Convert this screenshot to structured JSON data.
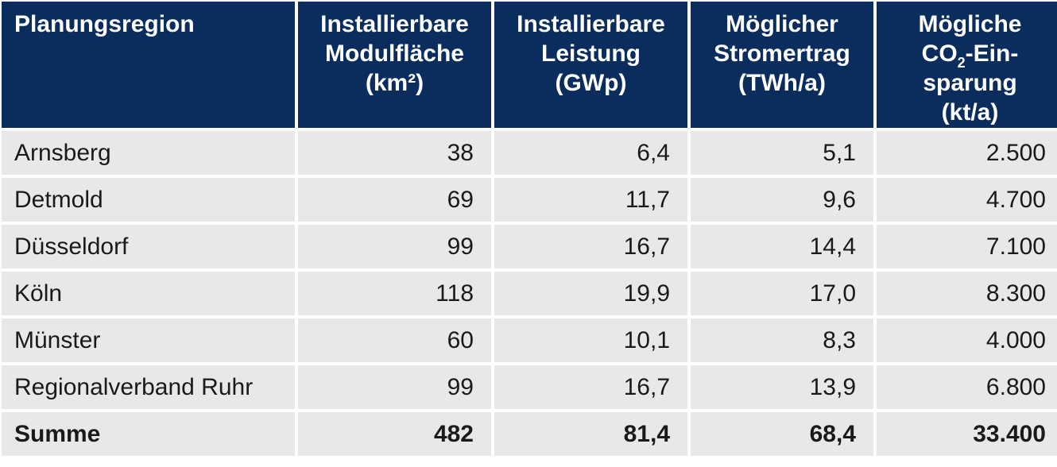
{
  "table": {
    "headers": {
      "region": "Planungsregion",
      "area": [
        "Installierbare",
        "Modulfläche",
        "(km²)"
      ],
      "power": [
        "Installierbare",
        "Leistung",
        "(GWp)"
      ],
      "yield": [
        "Möglicher",
        "Stromertrag",
        "(TWh/a)"
      ],
      "co2": {
        "line1": "Mögliche",
        "co": "CO",
        "sub": "2",
        "rest": "-Ein-",
        "line3": "sparung",
        "line4": "(kt/a)"
      }
    },
    "rows": [
      {
        "region": "Arnsberg",
        "area": "38",
        "power": "6,4",
        "yield": "5,1",
        "co2": "2.500"
      },
      {
        "region": "Detmold",
        "area": "69",
        "power": "11,7",
        "yield": "9,6",
        "co2": "4.700"
      },
      {
        "region": "Düsseldorf",
        "area": "99",
        "power": "16,7",
        "yield": "14,4",
        "co2": "7.100"
      },
      {
        "region": "Köln",
        "area": "118",
        "power": "19,9",
        "yield": "17,0",
        "co2": "8.300"
      },
      {
        "region": "Münster",
        "area": "60",
        "power": "10,1",
        "yield": "8,3",
        "co2": "4.000"
      },
      {
        "region": "Regionalverband Ruhr",
        "area": "99",
        "power": "16,7",
        "yield": "13,9",
        "co2": "6.800"
      }
    ],
    "total": {
      "region": "Summe",
      "area": "482",
      "power": "81,4",
      "yield": "68,4",
      "co2": "33.400"
    }
  },
  "colors": {
    "header_bg": "#0a2d5e",
    "header_text": "#ffffff",
    "cell_bg": "#e8e8e8",
    "cell_text": "#1a1a1a"
  }
}
